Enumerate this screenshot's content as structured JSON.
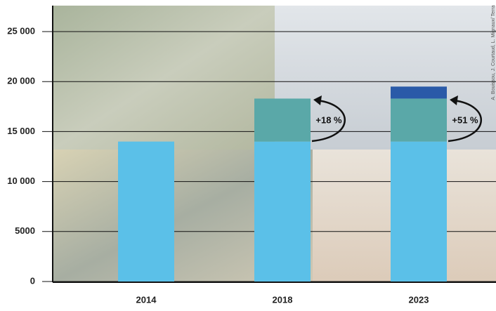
{
  "chart_data": {
    "type": "stacked-bar",
    "categories": [
      "2014",
      "2018",
      "2023"
    ],
    "series": [
      {
        "color": "#5bc0e8",
        "values": [
          14000,
          14000,
          14000
        ]
      },
      {
        "color": "#5aa8a8",
        "values": [
          null,
          4300,
          4300
        ]
      },
      {
        "color": "#2a5aa8",
        "values": [
          null,
          null,
          1200
        ]
      }
    ],
    "ylim": [
      0,
      27600
    ],
    "yticks": [
      0,
      5000,
      {
        "value": 10000,
        "label": "10 000"
      },
      {
        "value": 15000,
        "label": "15 000"
      },
      {
        "value": 20000,
        "label": "20 000"
      },
      {
        "value": 25000,
        "label": "25 000"
      }
    ],
    "grid": true,
    "annotations": [
      "+18 %",
      "+51 %"
    ],
    "credit": "A. Bouissou, J. Courtaud, L. Mignaux/ Terra"
  }
}
